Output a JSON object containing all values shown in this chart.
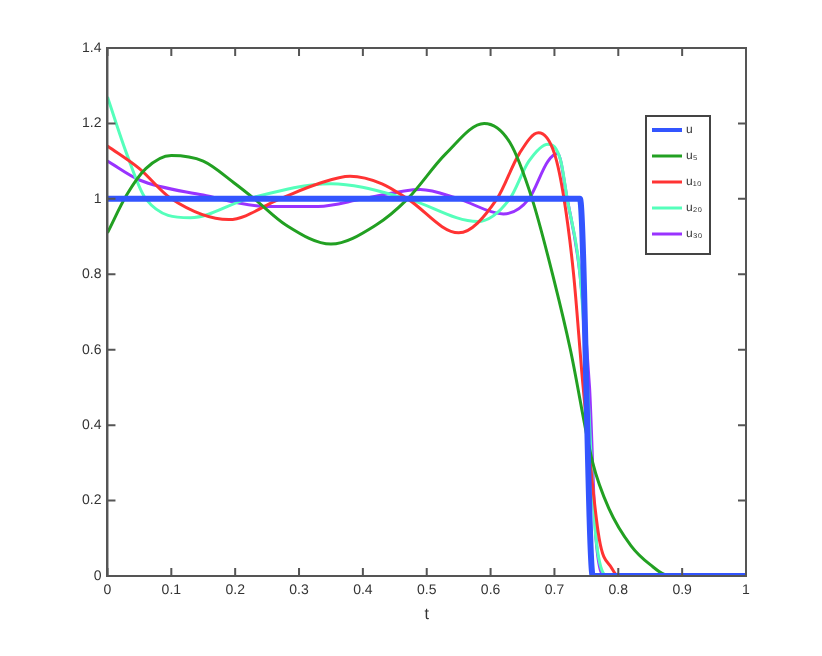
{
  "chart_data": {
    "type": "line",
    "xlabel": "t",
    "xlim": [
      0,
      1
    ],
    "xticks": [
      0,
      0.1,
      0.2,
      0.3,
      0.4,
      0.5,
      0.6,
      0.7,
      0.8,
      0.9,
      1
    ],
    "ylim": [
      0,
      1.4
    ],
    "yticks": [
      0,
      0.2,
      0.4,
      0.6,
      0.8,
      1,
      1.2,
      1.4
    ],
    "grid": false,
    "legend": "top right",
    "marker": "none",
    "line_style": "solid",
    "series": [
      {
        "name": "u",
        "color": "#3355ff",
        "x": [
          0,
          0.74,
          0.76,
          1
        ],
        "values": [
          1,
          1,
          0,
          0
        ]
      },
      {
        "name": "u₅",
        "color": "#22a022",
        "x": [
          0,
          0.03,
          0.06,
          0.1,
          0.15,
          0.2,
          0.23,
          0.28,
          0.35,
          0.42,
          0.47,
          0.53,
          0.59,
          0.63,
          0.665,
          0.7,
          0.725,
          0.76,
          0.785,
          0.82,
          0.85,
          0.88,
          1
        ],
        "values": [
          0.91,
          1.01,
          1.08,
          1.115,
          1.1,
          1.04,
          1.0,
          0.93,
          0.88,
          0.93,
          1.0,
          1.12,
          1.2,
          1.15,
          1.0,
          0.78,
          0.6,
          0.3,
          0.18,
          0.08,
          0.03,
          0,
          0
        ]
      },
      {
        "name": "u₁₀",
        "color": "#ff3333",
        "x": [
          0,
          0.05,
          0.1,
          0.19,
          0.27,
          0.33,
          0.38,
          0.43,
          0.47,
          0.55,
          0.61,
          0.645,
          0.675,
          0.7,
          0.715,
          0.73,
          0.745,
          0.77,
          0.79,
          0.8,
          1
        ],
        "values": [
          1.14,
          1.08,
          1.0,
          0.945,
          1.0,
          1.04,
          1.06,
          1.04,
          1.0,
          0.91,
          1.0,
          1.12,
          1.175,
          1.12,
          1.0,
          0.8,
          0.5,
          0.1,
          0.02,
          0,
          0
        ]
      },
      {
        "name": "u₂₀",
        "color": "#55ffbb",
        "x": [
          0,
          0.03,
          0.06,
          0.13,
          0.22,
          0.35,
          0.47,
          0.58,
          0.63,
          0.66,
          0.69,
          0.71,
          0.72,
          0.74,
          0.752,
          0.765,
          0.785,
          1
        ],
        "values": [
          1.27,
          1.12,
          1.0,
          0.95,
          1.0,
          1.04,
          1.0,
          0.94,
          1.0,
          1.1,
          1.145,
          1.1,
          1.0,
          0.8,
          0.5,
          0.1,
          0,
          0
        ]
      },
      {
        "name": "u₃₀",
        "color": "#9933ff",
        "x": [
          0,
          0.05,
          0.15,
          0.25,
          0.33,
          0.4,
          0.49,
          0.55,
          0.62,
          0.66,
          0.69,
          0.705,
          0.72,
          0.74,
          0.755,
          0.765,
          0.78,
          1
        ],
        "values": [
          1.1,
          1.05,
          1.01,
          0.98,
          0.98,
          1.0,
          1.025,
          1.0,
          0.96,
          1.0,
          1.1,
          1.12,
          1.0,
          0.8,
          0.5,
          0.1,
          0,
          0
        ]
      }
    ]
  }
}
